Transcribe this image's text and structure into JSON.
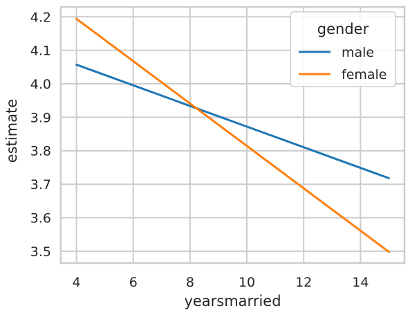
{
  "chart_data": {
    "type": "line",
    "title": "",
    "xlabel": "yearsmarried",
    "ylabel": "estimate",
    "xlim": [
      3.45,
      15.55
    ],
    "ylim": [
      3.4645,
      4.2295
    ],
    "xticks": [
      4,
      6,
      8,
      10,
      12,
      14
    ],
    "yticks": [
      3.5,
      3.6,
      3.7,
      3.8,
      3.9,
      4.0,
      4.1,
      4.2
    ],
    "ytick_labels": [
      "3.5",
      "3.6",
      "3.7",
      "3.8",
      "3.9",
      "4.0",
      "4.1",
      "4.2"
    ],
    "grid": true,
    "legend": {
      "title": "gender",
      "placement": "top-right"
    },
    "series": [
      {
        "name": "male",
        "color": "#1f77b4",
        "x": [
          4,
          15
        ],
        "y": [
          4.057,
          3.718
        ]
      },
      {
        "name": "female",
        "color": "#ff7f0e",
        "x": [
          4,
          15
        ],
        "y": [
          4.194,
          3.498
        ]
      }
    ]
  }
}
